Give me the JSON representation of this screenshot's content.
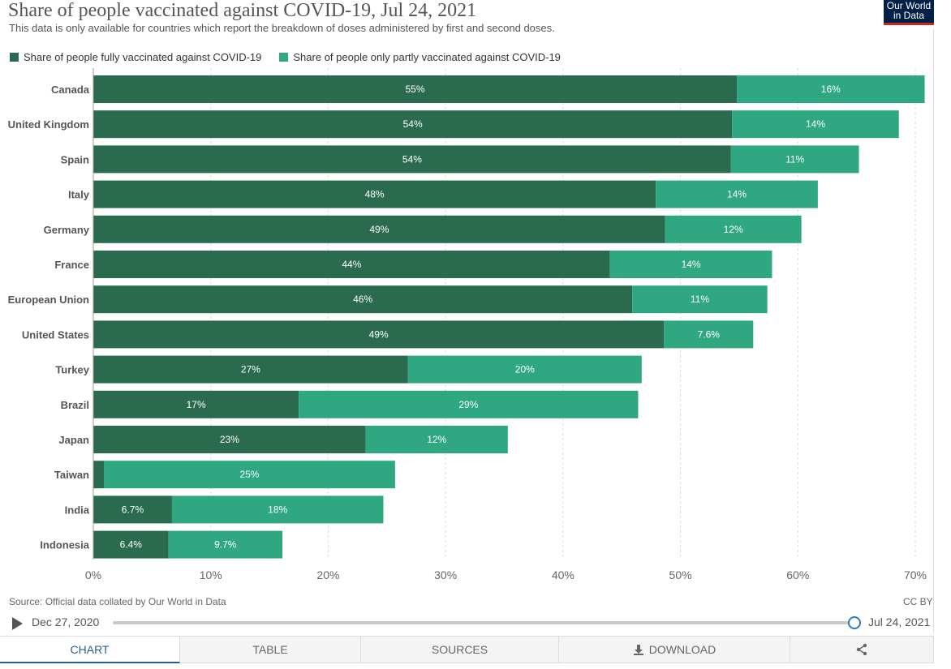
{
  "header": {
    "title": "Share of people vaccinated against COVID-19, Jul 24, 2021",
    "subtitle": "This data is only available for countries which report the breakdown of doses administered by first and second doses.",
    "logo_line1": "Our World",
    "logo_line2": "in Data"
  },
  "colors": {
    "fully": "#2a6b50",
    "partly": "#2fa882",
    "gridline": "#dddddd",
    "accent": "#2c5e8b"
  },
  "chart_data": {
    "type": "bar",
    "orientation": "horizontal",
    "stacked": true,
    "title": "Share of people vaccinated against COVID-19, Jul 24, 2021",
    "xlabel": "",
    "ylabel": "",
    "xlim": [
      0,
      70
    ],
    "x_ticks": [
      0,
      10,
      20,
      30,
      40,
      50,
      60,
      70
    ],
    "x_tick_labels": [
      "0%",
      "10%",
      "20%",
      "30%",
      "40%",
      "50%",
      "60%",
      "70%"
    ],
    "grid": true,
    "legend_position": "top-left",
    "categories": [
      "Canada",
      "United Kingdom",
      "Spain",
      "Italy",
      "Germany",
      "France",
      "European Union",
      "United States",
      "Turkey",
      "Brazil",
      "Japan",
      "Taiwan",
      "India",
      "Indonesia"
    ],
    "series": [
      {
        "name": "Share of people fully vaccinated against COVID-19",
        "color": "#2a6b50",
        "values": [
          54.8,
          54.4,
          54.3,
          47.9,
          48.7,
          44.0,
          45.9,
          48.6,
          26.8,
          17.5,
          23.2,
          0.9,
          6.7,
          6.4
        ],
        "labels": [
          "55%",
          "54%",
          "54%",
          "48%",
          "49%",
          "44%",
          "46%",
          "49%",
          "27%",
          "17%",
          "23%",
          "",
          "6.7%",
          "6.4%"
        ]
      },
      {
        "name": "Share of people only partly vaccinated against COVID-19",
        "color": "#2fa882",
        "values": [
          16.0,
          14.2,
          10.9,
          13.8,
          11.6,
          13.8,
          11.5,
          7.6,
          19.9,
          28.9,
          12.1,
          24.8,
          18.0,
          9.7
        ],
        "labels": [
          "16%",
          "14%",
          "11%",
          "14%",
          "12%",
          "14%",
          "11%",
          "7.6%",
          "20%",
          "29%",
          "12%",
          "25%",
          "18%",
          "9.7%"
        ]
      }
    ]
  },
  "footer": {
    "source": "Source: Official data collated by Our World in Data",
    "license": "CC BY"
  },
  "timeline": {
    "start_label": "Dec 27, 2020",
    "end_label": "Jul 24, 2021",
    "position": 1.0
  },
  "tabs": [
    {
      "label": "CHART",
      "active": true
    },
    {
      "label": "TABLE",
      "active": false
    },
    {
      "label": "SOURCES",
      "active": false
    },
    {
      "label": "DOWNLOAD",
      "active": false
    }
  ]
}
